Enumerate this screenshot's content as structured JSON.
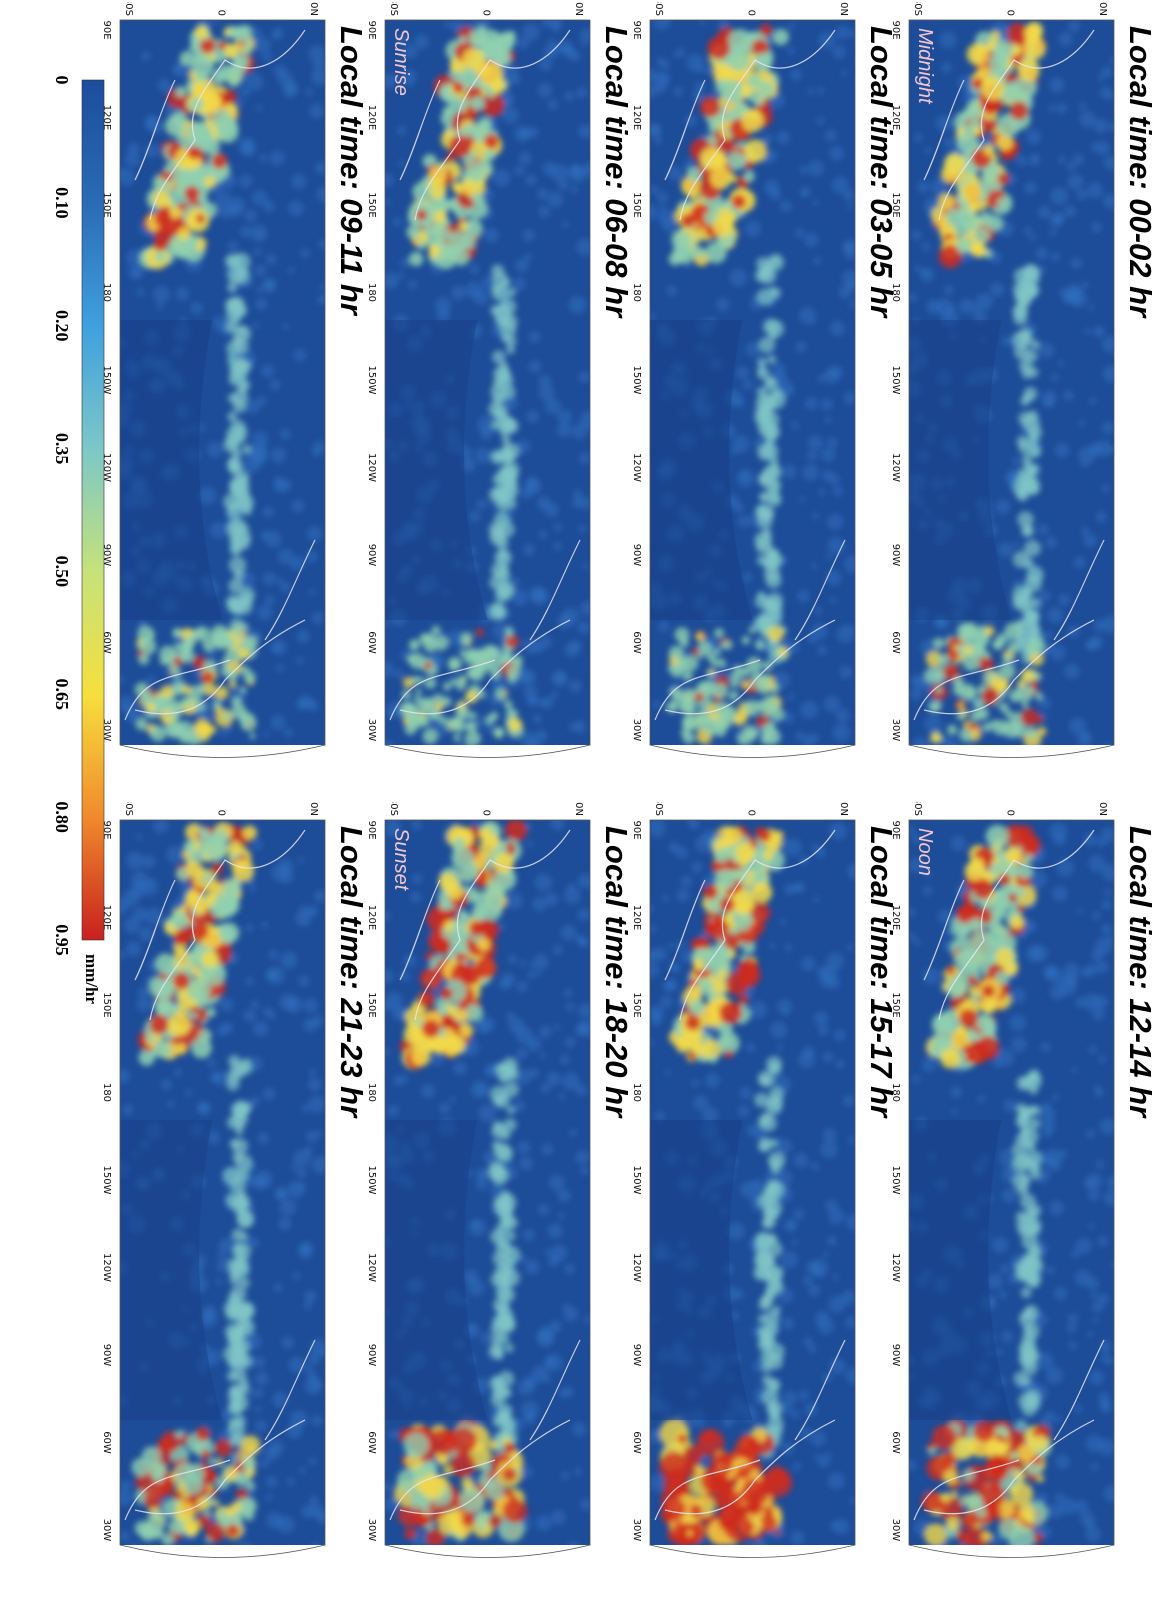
{
  "panels": [
    {
      "id": "p1",
      "title": "Local time: 00-02 hr",
      "corner_label": "Midnight"
    },
    {
      "id": "p2",
      "title": "Local time: 03-05 hr",
      "corner_label": ""
    },
    {
      "id": "p3",
      "title": "Local time: 06-08 hr",
      "corner_label": "Sunrise"
    },
    {
      "id": "p4",
      "title": "Local time: 09-11 hr",
      "corner_label": ""
    },
    {
      "id": "p5",
      "title": "Local time: 12-14 hr",
      "corner_label": "Noon"
    },
    {
      "id": "p6",
      "title": "Local time: 15-17 hr",
      "corner_label": ""
    },
    {
      "id": "p7",
      "title": "Local time: 18-20 hr",
      "corner_label": "Sunset"
    },
    {
      "id": "p8",
      "title": "Local time: 21-23 hr",
      "corner_label": ""
    }
  ],
  "lon_ticks": [
    "90E",
    "120E",
    "150E",
    "180",
    "150W",
    "120W",
    "90W",
    "60W",
    "30W"
  ],
  "lat_ticks": [
    "30N",
    "0",
    "30S"
  ],
  "colorbar": {
    "unit": "mm/hr",
    "labels": [
      "0",
      "0.10",
      "0.20",
      "0.35",
      "0.50",
      "0.65",
      "0.80",
      "0.95"
    ],
    "colors": [
      "#1c4d9c",
      "#2a6bb6",
      "#3fa0de",
      "#7cc7c8",
      "#c6e27a",
      "#f6df3e",
      "#f08a2c",
      "#c8201e"
    ]
  },
  "colors": {
    "ocean_low": "#1d4c98",
    "rain_mid": "#f2d94a",
    "rain_high": "#cf2a1e",
    "coast": "#e8e6f2"
  }
}
